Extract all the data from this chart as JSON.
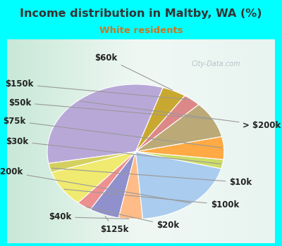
{
  "title": "Income distribution in Maltby, WA (%)",
  "subtitle": "White residents",
  "title_color": "#333333",
  "subtitle_color": "#cc7722",
  "bg_top_color": "#00ffff",
  "chart_bg": "#e8f5ee",
  "watermark": "City-Data.com",
  "labels": [
    "> $200k",
    "$10k",
    "$100k",
    "$20k",
    "$125k",
    "$40k",
    "$200k",
    "$30k",
    "$75k",
    "$50k",
    "$150k",
    "$60k"
  ],
  "values": [
    30,
    2,
    8,
    2.5,
    5,
    4,
    18,
    2,
    5,
    8,
    3,
    4
  ],
  "colors": [
    "#b8a8d8",
    "#d4d060",
    "#f0ea70",
    "#ee9090",
    "#9090cc",
    "#ffbb88",
    "#aaccee",
    "#ccdd66",
    "#ffaa44",
    "#bbaa77",
    "#dd8888",
    "#c8a830"
  ],
  "startangle": 72,
  "label_fontsize": 8.5,
  "label_color": "#222222",
  "line_color": "#888888",
  "wedge_lw": 0.8,
  "wedge_ec": "#ffffff"
}
